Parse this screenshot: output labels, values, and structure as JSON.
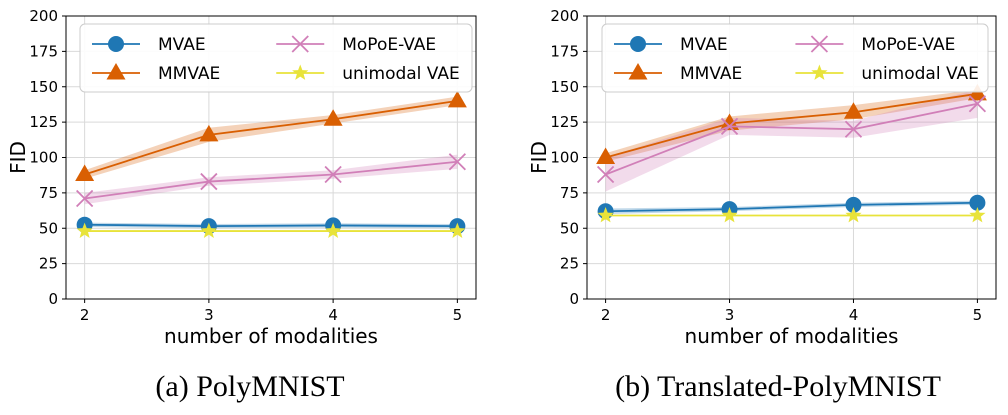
{
  "chart_data": [
    {
      "type": "line",
      "caption": "(a) PolyMNIST",
      "xlabel": "number of modalities",
      "ylabel": "FID",
      "x": [
        2,
        3,
        4,
        5
      ],
      "xticks": [
        "2",
        "3",
        "4",
        "5"
      ],
      "ylim": [
        0,
        200
      ],
      "yticks": [
        "0",
        "25",
        "50",
        "75",
        "100",
        "125",
        "150",
        "175",
        "200"
      ],
      "grid": true,
      "legend_position": "top-left",
      "series": [
        {
          "name": "MVAE",
          "color": "#1f77b4",
          "marker": "circle",
          "values": [
            52.5,
            51.5,
            52,
            51.5
          ],
          "band": [
            1.5,
            1.5,
            1.5,
            1.5
          ]
        },
        {
          "name": "MMVAE",
          "color": "#d95f02",
          "marker": "triangle",
          "values": [
            88,
            116,
            127,
            140
          ],
          "band": [
            3,
            5,
            3,
            3
          ]
        },
        {
          "name": "MoPoE-VAE",
          "color": "#d17fb8",
          "marker": "x",
          "values": [
            71,
            83,
            88,
            97
          ],
          "band": [
            4,
            3,
            3,
            5
          ]
        },
        {
          "name": "unimodal VAE",
          "color": "#e8e33a",
          "marker": "star",
          "values": [
            48,
            48,
            48,
            48
          ],
          "band": [
            0,
            0,
            0,
            0
          ]
        }
      ]
    },
    {
      "type": "line",
      "caption": "(b) Translated-PolyMNIST",
      "xlabel": "number of modalities",
      "ylabel": "FID",
      "x": [
        2,
        3,
        4,
        5
      ],
      "xticks": [
        "2",
        "3",
        "4",
        "5"
      ],
      "ylim": [
        0,
        200
      ],
      "yticks": [
        "0",
        "25",
        "50",
        "75",
        "100",
        "125",
        "150",
        "175",
        "200"
      ],
      "grid": true,
      "legend_position": "top-left",
      "series": [
        {
          "name": "MVAE",
          "color": "#1f77b4",
          "marker": "circle",
          "values": [
            62,
            63.5,
            66.5,
            68
          ],
          "band": [
            2,
            1.5,
            1.5,
            1.5
          ]
        },
        {
          "name": "MMVAE",
          "color": "#d95f02",
          "marker": "triangle",
          "values": [
            100,
            124,
            132,
            145
          ],
          "band": [
            3,
            5,
            5,
            3
          ]
        },
        {
          "name": "MoPoE-VAE",
          "color": "#d17fb8",
          "marker": "x",
          "values": [
            88,
            122,
            120,
            138
          ],
          "band": [
            12,
            6,
            6,
            10
          ]
        },
        {
          "name": "unimodal VAE",
          "color": "#e8e33a",
          "marker": "star",
          "values": [
            59,
            59,
            59,
            59
          ],
          "band": [
            0,
            0,
            0,
            0
          ]
        }
      ]
    }
  ]
}
